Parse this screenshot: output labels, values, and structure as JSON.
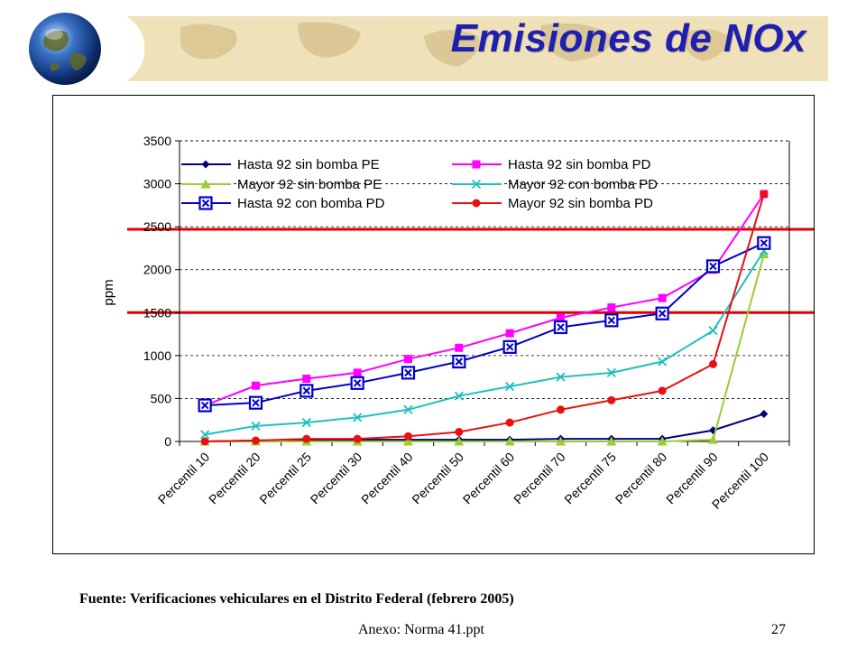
{
  "slide": {
    "title": "Emisiones de NOx",
    "source": "Fuente: Verificaciones vehiculares en el Distrito Federal (febrero 2005)",
    "footer_file": "Anexo: Norma 41.ppt",
    "page_number": "27"
  },
  "chart_data": {
    "type": "line",
    "ylabel": "ppm",
    "ylim": [
      0,
      3500
    ],
    "yticks": [
      0,
      500,
      1000,
      1500,
      2000,
      2500,
      3000,
      3500
    ],
    "grid": "horizontal dashed",
    "legend_position": "top-left",
    "categories": [
      "Percentil 10",
      "Percentil 20",
      "Percentil 25",
      "Percentil 30",
      "Percentil 40",
      "Percentil 50",
      "Percentil 60",
      "Percentil 70",
      "Percentil 75",
      "Percentil 80",
      "Percentil 90",
      "Percentil 100"
    ],
    "series": [
      {
        "name": "Hasta 92 sin bomba PE",
        "color": "#00007f",
        "marker": "diamond",
        "values": [
          0,
          10,
          20,
          20,
          20,
          20,
          20,
          30,
          30,
          30,
          130,
          320
        ]
      },
      {
        "name": "Hasta 92 sin bomba PD",
        "color": "#ff00ff",
        "marker": "square",
        "values": [
          420,
          650,
          730,
          800,
          960,
          1090,
          1260,
          1440,
          1560,
          1670,
          2000,
          2880
        ]
      },
      {
        "name": "Mayor 92 sin bomba PE",
        "color": "#9acd32",
        "marker": "triangle",
        "values": [
          0,
          0,
          0,
          0,
          0,
          0,
          0,
          0,
          0,
          0,
          20,
          2180
        ]
      },
      {
        "name": "Mayor 92 con bomba PD",
        "color": "#20c0c0",
        "marker": "x",
        "values": [
          80,
          180,
          220,
          280,
          370,
          530,
          640,
          750,
          800,
          930,
          1290,
          2220
        ]
      },
      {
        "name": "Hasta 92 con bomba PD",
        "color": "#0000cd",
        "marker": "xsquare",
        "values": [
          420,
          450,
          590,
          680,
          800,
          930,
          1100,
          1330,
          1410,
          1490,
          2040,
          2310
        ]
      },
      {
        "name": "Mayor 92 sin bomba PD",
        "color": "#e81010",
        "marker": "circle",
        "values": [
          0,
          10,
          30,
          30,
          60,
          110,
          220,
          370,
          480,
          590,
          900,
          2880
        ]
      }
    ],
    "reference_lines": [
      {
        "y": 1500,
        "color": "#e00000"
      },
      {
        "y": 2470,
        "color": "#e00000"
      }
    ]
  }
}
